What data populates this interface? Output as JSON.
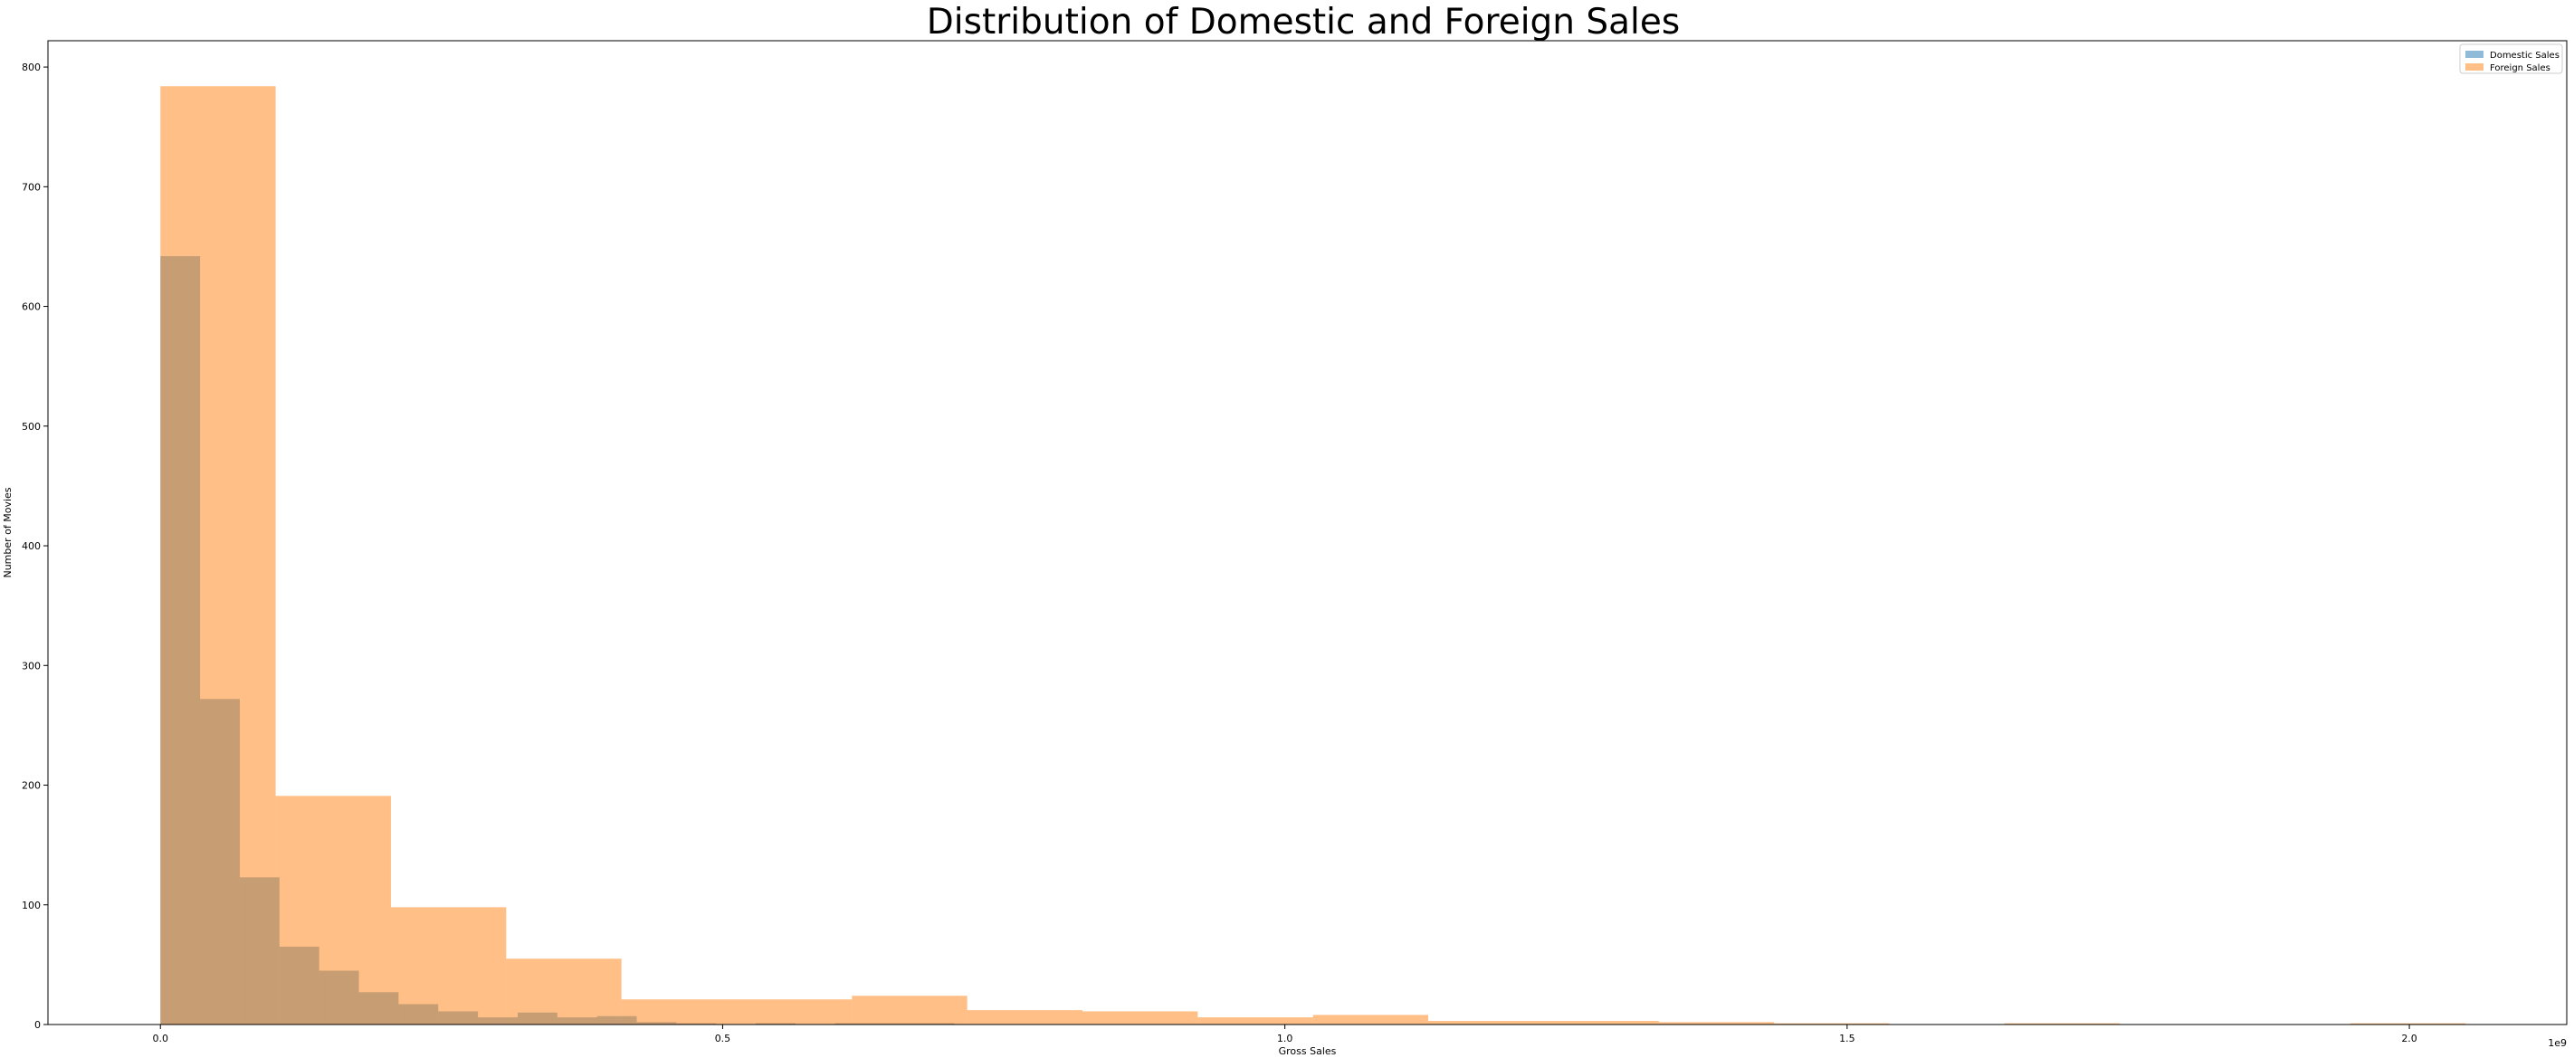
{
  "chart_data": {
    "type": "bar",
    "title": "Distribution of Domestic and Foreign Sales",
    "xlabel": "Gross Sales",
    "ylabel": "Number of Movies",
    "x_offset_label": "1e9",
    "xlim": [
      -0.1,
      2.14
    ],
    "ylim": [
      0,
      822
    ],
    "x_ticks": [
      {
        "value": 0.0,
        "label": "0.0"
      },
      {
        "value": 0.5,
        "label": "0.5"
      },
      {
        "value": 1.0,
        "label": "1.0"
      },
      {
        "value": 1.5,
        "label": "1.5"
      },
      {
        "value": 2.0,
        "label": "2.0"
      }
    ],
    "y_ticks": [
      {
        "value": 0,
        "label": "0"
      },
      {
        "value": 100,
        "label": "100"
      },
      {
        "value": 200,
        "label": "200"
      },
      {
        "value": 300,
        "label": "300"
      },
      {
        "value": 400,
        "label": "400"
      },
      {
        "value": 500,
        "label": "500"
      },
      {
        "value": 600,
        "label": "600"
      },
      {
        "value": 700,
        "label": "700"
      },
      {
        "value": 800,
        "label": "800"
      }
    ],
    "grid": false,
    "legend_position": "top-right",
    "series": [
      {
        "name": "Domestic Sales",
        "color": "#1f77b4",
        "opacity": 0.5,
        "bin_edges": [
          0.0,
          0.0353,
          0.0706,
          0.1059,
          0.1412,
          0.1765,
          0.2118,
          0.2471,
          0.2824,
          0.3177,
          0.353,
          0.3883,
          0.4236,
          0.4589,
          0.4942,
          0.5295,
          0.5648,
          0.6001,
          0.6354,
          0.6707,
          0.706
        ],
        "counts": [
          642,
          272,
          123,
          65,
          45,
          27,
          17,
          11,
          6,
          10,
          6,
          7,
          2,
          1,
          0,
          1,
          0,
          1,
          1,
          1
        ]
      },
      {
        "name": "Foreign Sales",
        "color": "#ff7f0e",
        "opacity": 0.5,
        "bin_edges": [
          0.0,
          0.1025,
          0.205,
          0.3075,
          0.41,
          0.5125,
          0.615,
          0.7175,
          0.82,
          0.9225,
          1.025,
          1.1275,
          1.23,
          1.3325,
          1.435,
          1.5375,
          1.64,
          1.7425,
          1.845,
          1.9475,
          2.05
        ],
        "counts": [
          784,
          191,
          98,
          55,
          21,
          21,
          24,
          12,
          11,
          6,
          8,
          3,
          3,
          2,
          1,
          0,
          1,
          0,
          0,
          1
        ]
      }
    ]
  }
}
